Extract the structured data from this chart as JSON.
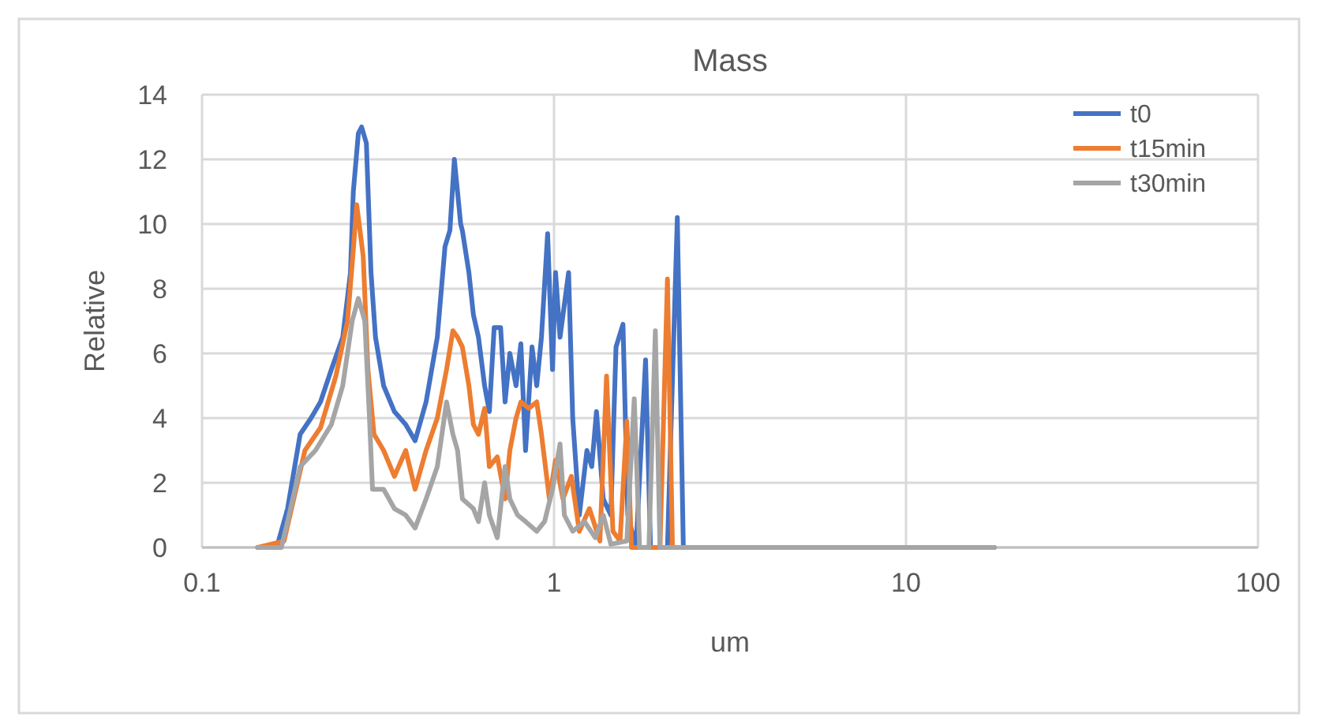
{
  "chart_data": {
    "type": "line",
    "title": "Mass",
    "xlabel": "um",
    "ylabel": "Relative",
    "log": "x",
    "xlim": [
      0.1,
      100
    ],
    "xticks": [
      0.1,
      1,
      10,
      100
    ],
    "ylim": [
      0,
      14
    ],
    "yticks": [
      0,
      2,
      4,
      6,
      8,
      10,
      12,
      14
    ],
    "grid": true,
    "legend": "top right",
    "marker": "none",
    "line_style": "solid",
    "series": [
      {
        "name": "t0",
        "color": "#4472c4",
        "x": [
          0.144,
          0.163,
          0.175,
          0.19,
          0.204,
          0.217,
          0.233,
          0.251,
          0.264,
          0.269,
          0.278,
          0.284,
          0.293,
          0.302,
          0.311,
          0.328,
          0.352,
          0.379,
          0.403,
          0.433,
          0.466,
          0.49,
          0.506,
          0.521,
          0.543,
          0.549,
          0.573,
          0.59,
          0.61,
          0.635,
          0.655,
          0.676,
          0.705,
          0.726,
          0.749,
          0.78,
          0.805,
          0.83,
          0.866,
          0.893,
          0.921,
          0.959,
          0.99,
          1.01,
          1.04,
          1.1,
          1.13,
          1.18,
          1.24,
          1.28,
          1.32,
          1.38,
          1.45,
          1.5,
          1.57,
          1.62,
          1.71,
          1.82,
          1.88,
          2.1,
          2.24,
          2.33,
          17.8
        ],
        "values": [
          0,
          0,
          1.2,
          3.5,
          4,
          4.5,
          5.5,
          6.5,
          8.5,
          11,
          12.8,
          13,
          12.5,
          8.5,
          6.5,
          5,
          4.2,
          3.8,
          3.3,
          4.5,
          6.5,
          9.3,
          9.8,
          12,
          10,
          9.8,
          8.5,
          7.2,
          6.5,
          5,
          4.2,
          6.8,
          6.8,
          4.5,
          6,
          5,
          6.3,
          3,
          6.2,
          5,
          6.5,
          9.7,
          5.5,
          8.5,
          6.5,
          8.5,
          4,
          1,
          3,
          2.5,
          4.2,
          1.5,
          1,
          6.2,
          6.9,
          1,
          0,
          5.8,
          0,
          0,
          10.2,
          0,
          0
        ]
      },
      {
        "name": "t15min",
        "color": "#ed7d31",
        "x": [
          0.144,
          0.171,
          0.184,
          0.196,
          0.217,
          0.24,
          0.259,
          0.269,
          0.275,
          0.281,
          0.287,
          0.296,
          0.308,
          0.328,
          0.352,
          0.379,
          0.403,
          0.433,
          0.466,
          0.495,
          0.516,
          0.532,
          0.549,
          0.573,
          0.59,
          0.61,
          0.635,
          0.655,
          0.69,
          0.726,
          0.749,
          0.78,
          0.805,
          0.848,
          0.893,
          0.921,
          0.97,
          1.01,
          1.06,
          1.12,
          1.18,
          1.26,
          1.35,
          1.41,
          1.47,
          1.54,
          1.61,
          1.66,
          2,
          2.1,
          2.17,
          17.8
        ],
        "values": [
          0,
          0.2,
          1.7,
          3,
          3.7,
          5.3,
          7,
          9.2,
          10.6,
          9.8,
          9,
          5.5,
          3.5,
          3,
          2.2,
          3,
          1.8,
          3,
          4,
          5.5,
          6.7,
          6.5,
          6.2,
          5,
          3.8,
          3.5,
          4.3,
          2.5,
          2.8,
          1.5,
          3,
          4,
          4.5,
          4.3,
          4.5,
          3.5,
          1.5,
          2.7,
          1.5,
          2.2,
          0.5,
          1.2,
          0.2,
          5.3,
          0.5,
          0.2,
          3.9,
          0,
          0,
          8.3,
          0,
          0
        ]
      },
      {
        "name": "t30min",
        "color": "#a5a5a5",
        "x": [
          0.144,
          0.168,
          0.175,
          0.19,
          0.21,
          0.233,
          0.251,
          0.267,
          0.278,
          0.29,
          0.299,
          0.305,
          0.328,
          0.352,
          0.379,
          0.403,
          0.433,
          0.466,
          0.495,
          0.516,
          0.532,
          0.549,
          0.59,
          0.61,
          0.635,
          0.655,
          0.69,
          0.726,
          0.749,
          0.788,
          0.83,
          0.893,
          0.94,
          0.99,
          1.04,
          1.07,
          1.13,
          1.22,
          1.31,
          1.38,
          1.45,
          1.61,
          1.69,
          1.75,
          1.86,
          1.94,
          2,
          17.8
        ],
        "values": [
          0,
          0,
          0.8,
          2.5,
          3,
          3.8,
          5,
          7,
          7.7,
          7,
          4,
          1.8,
          1.8,
          1.2,
          1,
          0.6,
          1.5,
          2.5,
          4.5,
          3.5,
          3,
          1.5,
          1.2,
          0.8,
          2,
          1,
          0.3,
          2.5,
          1.5,
          1,
          0.8,
          0.5,
          0.8,
          1.8,
          3.2,
          1,
          0.5,
          0.8,
          0.3,
          1,
          0.1,
          0.2,
          4.6,
          0,
          0,
          6.7,
          0,
          0
        ]
      }
    ]
  }
}
